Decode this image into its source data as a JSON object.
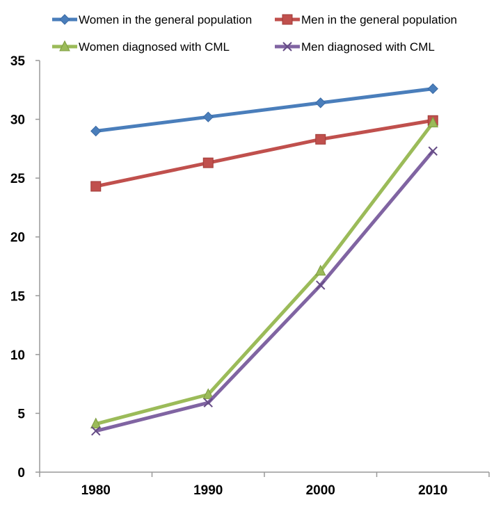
{
  "chart_data": {
    "type": "line",
    "title": "",
    "xlabel": "",
    "ylabel": "",
    "categories": [
      "1980",
      "1990",
      "2000",
      "2010"
    ],
    "ylim": [
      0,
      35
    ],
    "yticks": [
      "0",
      "5",
      "10",
      "15",
      "20",
      "25",
      "30",
      "35"
    ],
    "grid": false,
    "legend_position": "top",
    "series": [
      {
        "name": "Women in the general population",
        "values": [
          29.0,
          30.2,
          31.4,
          32.6
        ],
        "color": "#4a7ebb",
        "marker": "diamond"
      },
      {
        "name": "Men in the general population",
        "values": [
          24.3,
          26.3,
          28.3,
          29.9
        ],
        "color": "#c0504d",
        "marker": "square"
      },
      {
        "name": "Women diagnosed with CML",
        "values": [
          4.1,
          6.6,
          17.1,
          29.7
        ],
        "color": "#9bbb59",
        "marker": "triangle"
      },
      {
        "name": "Men diagnosed with CML",
        "values": [
          3.5,
          5.9,
          15.9,
          27.3
        ],
        "color": "#8064a2",
        "marker": "x"
      }
    ]
  }
}
